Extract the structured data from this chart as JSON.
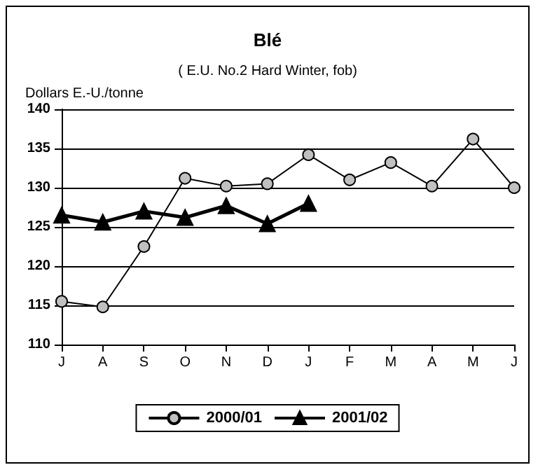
{
  "chart_data": {
    "type": "line",
    "title": "Blé",
    "subtitle": "( E.U. No.2 Hard Winter, fob)",
    "ylabel": "Dollars E.-U./tonne",
    "categories": [
      "J",
      "A",
      "S",
      "O",
      "N",
      "D",
      "J",
      "F",
      "M",
      "A",
      "M",
      "J"
    ],
    "series": [
      {
        "name": "2000/01",
        "color": "#c0c0c0",
        "marker": "circle",
        "values": [
          115.5,
          114.8,
          122.5,
          131.2,
          130.2,
          130.5,
          134.2,
          131,
          133.2,
          130.2,
          136.2,
          130
        ]
      },
      {
        "name": "2001/02",
        "color": "#000000",
        "marker": "triangle",
        "values": [
          126.5,
          125.6,
          127,
          126.2,
          127.7,
          125.4,
          128,
          null,
          null,
          null,
          null,
          null
        ]
      }
    ],
    "ylim": [
      110,
      140
    ],
    "yticks": [
      110,
      115,
      120,
      125,
      130,
      135,
      140
    ],
    "grid": "y",
    "legend": "bottom"
  }
}
